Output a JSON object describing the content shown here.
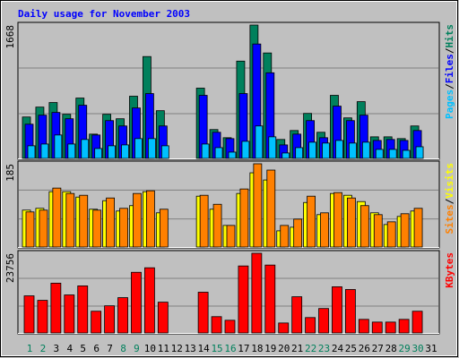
{
  "title": "Daily usage for November 2003",
  "legend_separator": "/",
  "chart_data": [
    {
      "type": "bar",
      "ylim": [
        0,
        1668
      ],
      "yticks": [
        1668
      ],
      "series": [
        {
          "name": "Hits",
          "color": "#00805c",
          "values": [
            518,
            642,
            699,
            552,
            755,
            304,
            552,
            496,
            778,
            1274,
            597,
            0,
            0,
            879,
            361,
            259,
            1217,
            1668,
            1319,
            237,
            349,
            563,
            327,
            789,
            507,
            710,
            270,
            270,
            248,
            406,
            0
          ]
        },
        {
          "name": "Files",
          "color": "#0000ff",
          "values": [
            428,
            541,
            575,
            496,
            665,
            293,
            473,
            406,
            631,
            811,
            406,
            0,
            0,
            789,
            327,
            248,
            811,
            1431,
            1071,
            169,
            304,
            473,
            259,
            654,
            473,
            541,
            225,
            237,
            225,
            349,
            0
          ]
        },
        {
          "name": "Pages",
          "color": "#00c0ff",
          "values": [
            158,
            180,
            293,
            180,
            237,
            124,
            158,
            169,
            248,
            248,
            158,
            0,
            0,
            180,
            135,
            79,
            214,
            406,
            270,
            68,
            135,
            203,
            192,
            225,
            192,
            203,
            113,
            113,
            101,
            146,
            0
          ]
        }
      ]
    },
    {
      "type": "bar",
      "ylim": [
        0,
        185
      ],
      "yticks": [
        185
      ],
      "series": [
        {
          "name": "Visits",
          "color": "#ffff00",
          "values": [
            82,
            86,
            123,
            123,
            111,
            84,
            103,
            80,
            92,
            123,
            76,
            0,
            0,
            113,
            84,
            48,
            119,
            165,
            149,
            36,
            44,
            99,
            72,
            119,
            115,
            101,
            76,
            50,
            68,
            80,
            0
          ]
        },
        {
          "name": "Sites",
          "color": "#ff8000",
          "values": [
            78,
            82,
            131,
            119,
            115,
            82,
            109,
            86,
            119,
            125,
            84,
            0,
            0,
            115,
            95,
            48,
            129,
            185,
            171,
            48,
            62,
            113,
            76,
            121,
            109,
            92,
            72,
            56,
            74,
            86,
            0
          ]
        }
      ]
    },
    {
      "type": "bar",
      "ylim": [
        0,
        23756
      ],
      "yticks": [
        23756
      ],
      "categories": [
        "1",
        "2",
        "3",
        "4",
        "5",
        "6",
        "7",
        "8",
        "9",
        "10",
        "11",
        "12",
        "13",
        "14",
        "15",
        "16",
        "17",
        "18",
        "19",
        "20",
        "21",
        "22",
        "23",
        "24",
        "25",
        "26",
        "27",
        "28",
        "29",
        "30",
        "31"
      ],
      "label_colors": [
        "#00805c",
        "#00805c",
        "#000000",
        "#000000",
        "#000000",
        "#000000",
        "#000000",
        "#00805c",
        "#00805c",
        "#000000",
        "#000000",
        "#000000",
        "#000000",
        "#000000",
        "#00805c",
        "#00805c",
        "#000000",
        "#000000",
        "#000000",
        "#000000",
        "#000000",
        "#00805c",
        "#00805c",
        "#000000",
        "#000000",
        "#000000",
        "#000000",
        "#000000",
        "#00805c",
        "#00805c",
        "#000000"
      ],
      "series": [
        {
          "name": "KBytes",
          "color": "#ff0000",
          "values": [
            11066,
            9718,
            14847,
            11337,
            14037,
            6478,
            8098,
            10527,
            18086,
            19436,
            9178,
            0,
            0,
            12147,
            4859,
            3779,
            19975,
            23756,
            20245,
            2969,
            10797,
            4589,
            7288,
            13767,
            12957,
            4049,
            3239,
            3239,
            4049,
            6478,
            0
          ]
        }
      ]
    }
  ]
}
